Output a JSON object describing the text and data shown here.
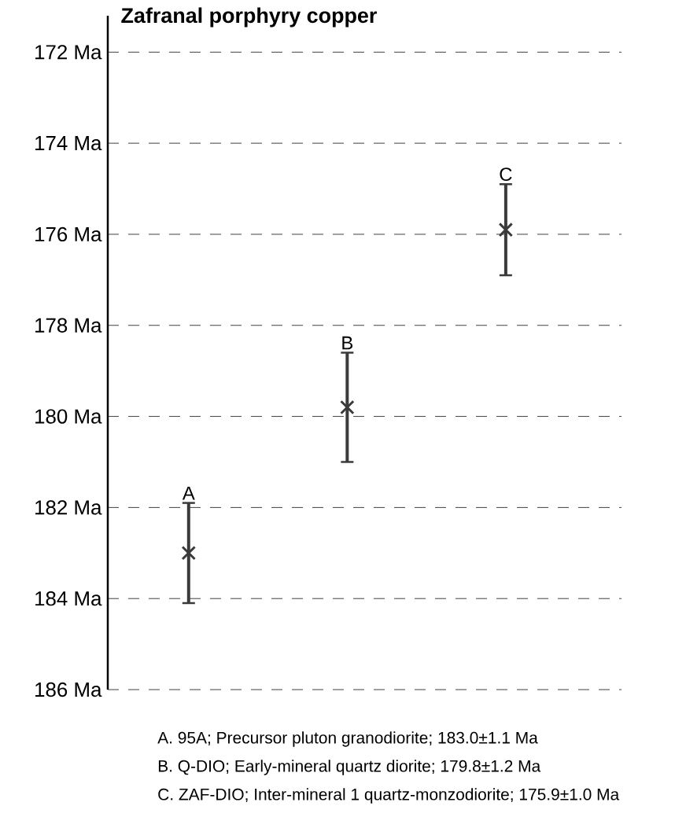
{
  "chart_data": {
    "type": "scatter",
    "title": "Zafranal porphyry copper",
    "categories": [
      null,
      null,
      null
    ],
    "values": [
      183.0,
      179.8,
      175.9
    ],
    "errors": [
      1.1,
      1.2,
      1.0
    ],
    "value_labels": [
      "A",
      "B",
      "C"
    ],
    "color": "#3a3a3a",
    "marker": "cross",
    "ylim": [
      186,
      171.2
    ],
    "yticks": [
      {
        "value": 172,
        "label": "172 Ma"
      },
      {
        "value": 174,
        "label": "174 Ma"
      },
      {
        "value": 176,
        "label": "176 Ma"
      },
      {
        "value": 178,
        "label": "178 Ma"
      },
      {
        "value": 180,
        "label": "180 Ma"
      },
      {
        "value": 182,
        "label": "182 Ma"
      },
      {
        "value": 184,
        "label": "184 Ma"
      },
      {
        "value": 186,
        "label": "186 Ma"
      }
    ],
    "grid": "y",
    "tick_labels": "y",
    "annotations": [
      "A. 95A; Precursor pluton granodiorite; 183.0±1.1 Ma",
      "B. Q-DIO; Early-mineral quartz diorite; 179.8±1.2 Ma",
      "C. ZAF-DIO; Inter-mineral 1 quartz-monzodiorite; 175.9±1.0 Ma"
    ]
  }
}
